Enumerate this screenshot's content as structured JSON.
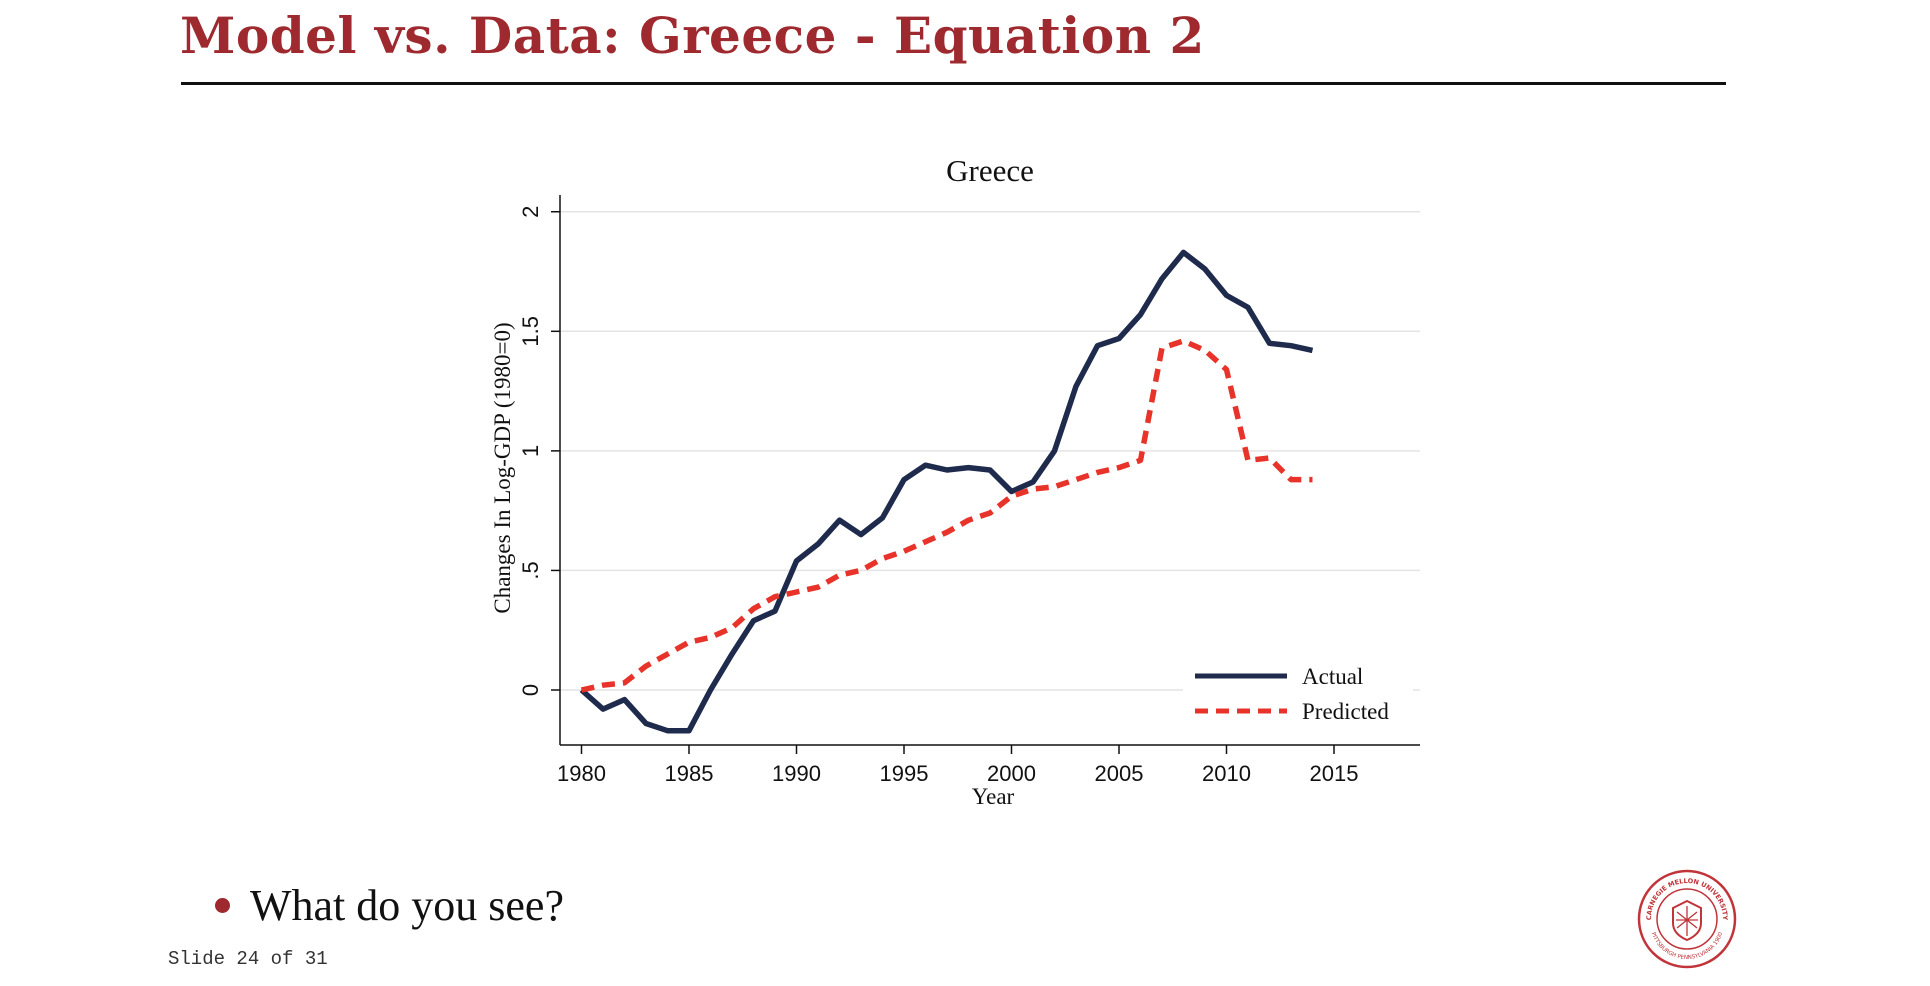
{
  "slide": {
    "title": "Model vs. Data: Greece - Equation 2",
    "bullet": "What do you see?",
    "counter": "Slide 24 of 31",
    "accent_color": "#9e2a2f",
    "logo": {
      "icon": "carnegie-mellon-university-seal",
      "text_top": "CARNEGIE MELLON UNIVERSITY",
      "text_bottom": "PITTSBURGH PENNSYLVANIA 1900"
    }
  },
  "chart_data": {
    "type": "line",
    "title": "Greece",
    "xlabel": "Year",
    "ylabel": "Changes In Log-GDP (1980=0)",
    "xlim": [
      1979,
      2019
    ],
    "ylim": [
      -0.23,
      2.07
    ],
    "xticks": [
      1980,
      1985,
      1990,
      1995,
      2000,
      2005,
      2010,
      2015
    ],
    "xtick_labels": [
      "1980",
      "1985",
      "1990",
      "1995",
      "2000",
      "2005",
      "2010",
      "2015"
    ],
    "yticks": [
      0,
      0.5,
      1,
      1.5,
      2
    ],
    "ytick_labels": [
      "0",
      ".5",
      "1",
      "1.5",
      "2"
    ],
    "grid": true,
    "legend_position": "bottom-right",
    "series": [
      {
        "name": "Actual",
        "color": "#1f2b4d",
        "style": "solid",
        "x": [
          1980,
          1981,
          1982,
          1983,
          1984,
          1985,
          1986,
          1987,
          1988,
          1989,
          1990,
          1991,
          1992,
          1993,
          1994,
          1995,
          1996,
          1997,
          1998,
          1999,
          2000,
          2001,
          2002,
          2003,
          2004,
          2005,
          2006,
          2007,
          2008,
          2009,
          2010,
          2011,
          2012,
          2013,
          2014
        ],
        "y": [
          0.0,
          -0.08,
          -0.04,
          -0.14,
          -0.17,
          -0.17,
          0.0,
          0.15,
          0.29,
          0.33,
          0.54,
          0.61,
          0.71,
          0.65,
          0.72,
          0.88,
          0.94,
          0.92,
          0.93,
          0.92,
          0.83,
          0.87,
          1.0,
          1.27,
          1.44,
          1.47,
          1.57,
          1.72,
          1.83,
          1.76,
          1.65,
          1.6,
          1.45,
          1.44,
          1.42
        ]
      },
      {
        "name": "Predicted",
        "color": "#e8332a",
        "style": "dashed",
        "x": [
          1980,
          1981,
          1982,
          1983,
          1984,
          1985,
          1986,
          1987,
          1988,
          1989,
          1990,
          1991,
          1992,
          1993,
          1994,
          1995,
          1996,
          1997,
          1998,
          1999,
          2000,
          2001,
          2002,
          2003,
          2004,
          2005,
          2006,
          2007,
          2008,
          2009,
          2010,
          2011,
          2012,
          2013,
          2014
        ],
        "y": [
          0.0,
          0.02,
          0.03,
          0.1,
          0.15,
          0.2,
          0.22,
          0.26,
          0.34,
          0.39,
          0.41,
          0.43,
          0.48,
          0.5,
          0.55,
          0.58,
          0.62,
          0.66,
          0.71,
          0.74,
          0.81,
          0.84,
          0.85,
          0.88,
          0.91,
          0.93,
          0.96,
          1.43,
          1.46,
          1.42,
          1.34,
          0.96,
          0.97,
          0.88,
          0.88
        ]
      }
    ]
  }
}
